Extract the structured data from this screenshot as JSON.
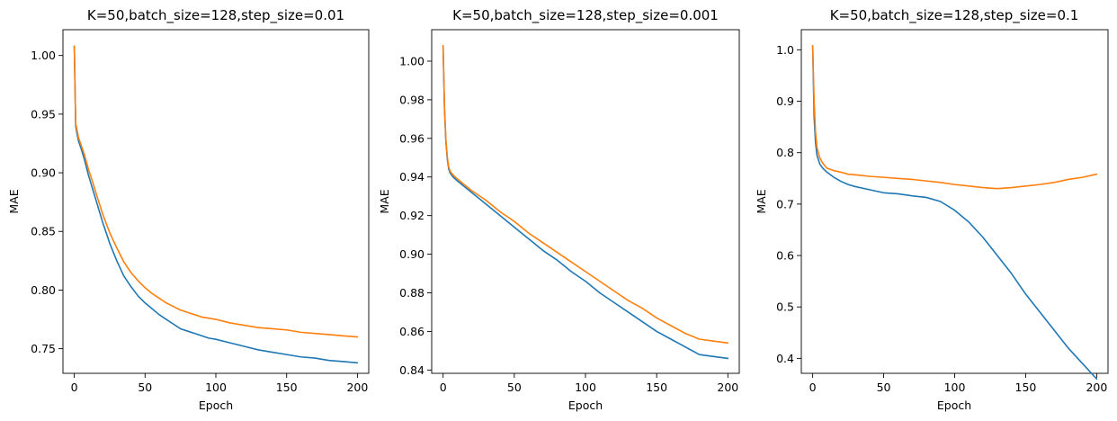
{
  "colors": {
    "series_1": "#1f77b4",
    "series_2": "#ff7f0e"
  },
  "chart_data": [
    {
      "type": "line",
      "title": "K=50,batch_size=128,step_size=0.01",
      "xlabel": "Epoch",
      "ylabel": "MAE",
      "xlim": [
        -8,
        208
      ],
      "ylim": [
        0.729,
        1.022
      ],
      "xticks": [
        0,
        50,
        100,
        150,
        200
      ],
      "xtick_labels": [
        "0",
        "50",
        "100",
        "150",
        "200"
      ],
      "yticks": [
        0.75,
        0.8,
        0.85,
        0.9,
        0.95,
        1.0
      ],
      "ytick_labels": [
        "0.75",
        "0.80",
        "0.85",
        "0.90",
        "0.95",
        "1.00"
      ],
      "grid": false,
      "series": [
        {
          "x": [
            0,
            1,
            2,
            3,
            5,
            7,
            10,
            13,
            15,
            20,
            25,
            30,
            35,
            40,
            45,
            50,
            55,
            60,
            65,
            70,
            75,
            80,
            85,
            90,
            95,
            100,
            110,
            120,
            130,
            140,
            150,
            160,
            170,
            180,
            190,
            200
          ],
          "y": [
            1.008,
            0.94,
            0.933,
            0.927,
            0.92,
            0.912,
            0.898,
            0.886,
            0.878,
            0.858,
            0.84,
            0.825,
            0.812,
            0.803,
            0.795,
            0.789,
            0.784,
            0.779,
            0.775,
            0.771,
            0.767,
            0.765,
            0.763,
            0.761,
            0.759,
            0.758,
            0.755,
            0.752,
            0.749,
            0.747,
            0.745,
            0.743,
            0.742,
            0.74,
            0.739,
            0.738
          ]
        },
        {
          "x": [
            0,
            1,
            2,
            3,
            5,
            7,
            10,
            13,
            15,
            20,
            25,
            30,
            35,
            40,
            45,
            50,
            55,
            60,
            65,
            70,
            75,
            80,
            85,
            90,
            95,
            100,
            110,
            120,
            130,
            140,
            150,
            160,
            170,
            180,
            190,
            200
          ],
          "y": [
            1.008,
            0.942,
            0.936,
            0.93,
            0.923,
            0.916,
            0.903,
            0.892,
            0.884,
            0.865,
            0.849,
            0.836,
            0.824,
            0.815,
            0.808,
            0.802,
            0.797,
            0.793,
            0.789,
            0.786,
            0.783,
            0.781,
            0.779,
            0.777,
            0.776,
            0.775,
            0.772,
            0.77,
            0.768,
            0.767,
            0.766,
            0.764,
            0.763,
            0.762,
            0.761,
            0.76
          ]
        }
      ]
    },
    {
      "type": "line",
      "title": "K=50,batch_size=128,step_size=0.001",
      "xlabel": "Epoch",
      "ylabel": "MAE",
      "xlim": [
        -8,
        208
      ],
      "ylim": [
        0.8383,
        1.0163
      ],
      "xticks": [
        0,
        50,
        100,
        150,
        200
      ],
      "xtick_labels": [
        "0",
        "50",
        "100",
        "150",
        "200"
      ],
      "yticks": [
        0.84,
        0.86,
        0.88,
        0.9,
        0.92,
        0.94,
        0.96,
        0.98,
        1.0
      ],
      "ytick_labels": [
        "0.84",
        "0.86",
        "0.88",
        "0.90",
        "0.92",
        "0.94",
        "0.96",
        "0.98",
        "1.00"
      ],
      "grid": false,
      "series": [
        {
          "x": [
            0,
            1,
            2,
            3,
            4,
            5,
            7,
            10,
            15,
            20,
            30,
            40,
            50,
            60,
            70,
            80,
            90,
            100,
            110,
            120,
            130,
            140,
            150,
            160,
            170,
            180,
            190,
            200
          ],
          "y": [
            1.008,
            0.975,
            0.958,
            0.949,
            0.944,
            0.942,
            0.94,
            0.938,
            0.935,
            0.932,
            0.926,
            0.92,
            0.914,
            0.908,
            0.902,
            0.897,
            0.891,
            0.886,
            0.88,
            0.875,
            0.87,
            0.865,
            0.86,
            0.856,
            0.852,
            0.848,
            0.847,
            0.846
          ]
        },
        {
          "x": [
            0,
            1,
            2,
            3,
            4,
            5,
            7,
            10,
            15,
            20,
            30,
            40,
            50,
            60,
            70,
            80,
            90,
            100,
            110,
            120,
            130,
            140,
            150,
            160,
            170,
            180,
            190,
            200
          ],
          "y": [
            1.008,
            0.976,
            0.959,
            0.95,
            0.945,
            0.943,
            0.941,
            0.939,
            0.936,
            0.933,
            0.928,
            0.922,
            0.917,
            0.911,
            0.906,
            0.901,
            0.896,
            0.891,
            0.886,
            0.881,
            0.876,
            0.872,
            0.867,
            0.863,
            0.859,
            0.856,
            0.855,
            0.854
          ]
        }
      ]
    },
    {
      "type": "line",
      "title": "K=50,batch_size=128,step_size=0.1",
      "xlabel": "Epoch",
      "ylabel": "MAE",
      "xlim": [
        -8,
        208
      ],
      "ylim": [
        0.3709,
        1.0391
      ],
      "xticks": [
        0,
        50,
        100,
        150,
        200
      ],
      "xtick_labels": [
        "0",
        "50",
        "100",
        "150",
        "200"
      ],
      "yticks": [
        0.4,
        0.5,
        0.6,
        0.7,
        0.8,
        0.9,
        1.0
      ],
      "ytick_labels": [
        "0.4",
        "0.5",
        "0.6",
        "0.7",
        "0.8",
        "0.9",
        "1.0"
      ],
      "grid": false,
      "series": [
        {
          "x": [
            0,
            1,
            2,
            3,
            5,
            7,
            10,
            15,
            20,
            25,
            30,
            40,
            50,
            60,
            70,
            80,
            90,
            100,
            110,
            120,
            130,
            140,
            150,
            160,
            170,
            180,
            190,
            200
          ],
          "y": [
            1.008,
            0.87,
            0.82,
            0.795,
            0.778,
            0.77,
            0.762,
            0.752,
            0.744,
            0.738,
            0.734,
            0.728,
            0.722,
            0.72,
            0.716,
            0.713,
            0.705,
            0.688,
            0.665,
            0.635,
            0.6,
            0.565,
            0.525,
            0.49,
            0.455,
            0.42,
            0.39,
            0.36
          ]
        },
        {
          "x": [
            0,
            1,
            2,
            3,
            5,
            7,
            10,
            15,
            20,
            25,
            30,
            40,
            50,
            60,
            70,
            80,
            90,
            100,
            110,
            120,
            130,
            140,
            150,
            160,
            170,
            180,
            190,
            200
          ],
          "y": [
            1.008,
            0.9,
            0.84,
            0.81,
            0.79,
            0.78,
            0.77,
            0.765,
            0.762,
            0.758,
            0.757,
            0.754,
            0.752,
            0.75,
            0.748,
            0.745,
            0.742,
            0.738,
            0.735,
            0.732,
            0.73,
            0.732,
            0.735,
            0.738,
            0.742,
            0.748,
            0.752,
            0.758
          ]
        }
      ]
    }
  ]
}
